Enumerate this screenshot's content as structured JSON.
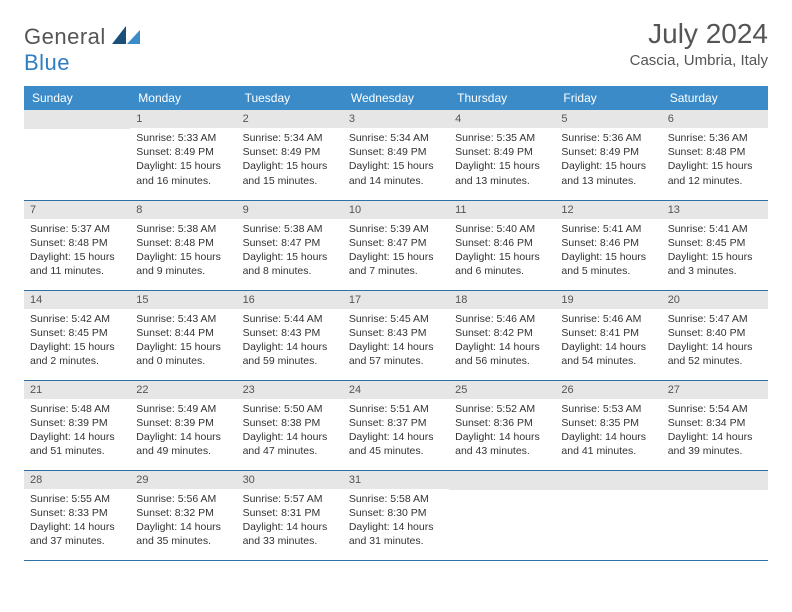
{
  "logo": {
    "general": "General",
    "blue": "Blue",
    "accent_color": "#2f7ec2"
  },
  "title": "July 2024",
  "location": "Cascia, Umbria, Italy",
  "colors": {
    "header_bg": "#3b8bc9",
    "header_text": "#ffffff",
    "day_bar_bg": "#e6e6e6",
    "day_bar_text": "#555555",
    "body_text": "#333333",
    "border": "#2f6fa8",
    "page_bg": "#ffffff",
    "title_text": "#555555"
  },
  "weekdays": [
    "Sunday",
    "Monday",
    "Tuesday",
    "Wednesday",
    "Thursday",
    "Friday",
    "Saturday"
  ],
  "weeks": [
    [
      {
        "blank": true
      },
      {
        "num": "1",
        "sunrise": "Sunrise: 5:33 AM",
        "sunset": "Sunset: 8:49 PM",
        "daylight": "Daylight: 15 hours and 16 minutes."
      },
      {
        "num": "2",
        "sunrise": "Sunrise: 5:34 AM",
        "sunset": "Sunset: 8:49 PM",
        "daylight": "Daylight: 15 hours and 15 minutes."
      },
      {
        "num": "3",
        "sunrise": "Sunrise: 5:34 AM",
        "sunset": "Sunset: 8:49 PM",
        "daylight": "Daylight: 15 hours and 14 minutes."
      },
      {
        "num": "4",
        "sunrise": "Sunrise: 5:35 AM",
        "sunset": "Sunset: 8:49 PM",
        "daylight": "Daylight: 15 hours and 13 minutes."
      },
      {
        "num": "5",
        "sunrise": "Sunrise: 5:36 AM",
        "sunset": "Sunset: 8:49 PM",
        "daylight": "Daylight: 15 hours and 13 minutes."
      },
      {
        "num": "6",
        "sunrise": "Sunrise: 5:36 AM",
        "sunset": "Sunset: 8:48 PM",
        "daylight": "Daylight: 15 hours and 12 minutes."
      }
    ],
    [
      {
        "num": "7",
        "sunrise": "Sunrise: 5:37 AM",
        "sunset": "Sunset: 8:48 PM",
        "daylight": "Daylight: 15 hours and 11 minutes."
      },
      {
        "num": "8",
        "sunrise": "Sunrise: 5:38 AM",
        "sunset": "Sunset: 8:48 PM",
        "daylight": "Daylight: 15 hours and 9 minutes."
      },
      {
        "num": "9",
        "sunrise": "Sunrise: 5:38 AM",
        "sunset": "Sunset: 8:47 PM",
        "daylight": "Daylight: 15 hours and 8 minutes."
      },
      {
        "num": "10",
        "sunrise": "Sunrise: 5:39 AM",
        "sunset": "Sunset: 8:47 PM",
        "daylight": "Daylight: 15 hours and 7 minutes."
      },
      {
        "num": "11",
        "sunrise": "Sunrise: 5:40 AM",
        "sunset": "Sunset: 8:46 PM",
        "daylight": "Daylight: 15 hours and 6 minutes."
      },
      {
        "num": "12",
        "sunrise": "Sunrise: 5:41 AM",
        "sunset": "Sunset: 8:46 PM",
        "daylight": "Daylight: 15 hours and 5 minutes."
      },
      {
        "num": "13",
        "sunrise": "Sunrise: 5:41 AM",
        "sunset": "Sunset: 8:45 PM",
        "daylight": "Daylight: 15 hours and 3 minutes."
      }
    ],
    [
      {
        "num": "14",
        "sunrise": "Sunrise: 5:42 AM",
        "sunset": "Sunset: 8:45 PM",
        "daylight": "Daylight: 15 hours and 2 minutes."
      },
      {
        "num": "15",
        "sunrise": "Sunrise: 5:43 AM",
        "sunset": "Sunset: 8:44 PM",
        "daylight": "Daylight: 15 hours and 0 minutes."
      },
      {
        "num": "16",
        "sunrise": "Sunrise: 5:44 AM",
        "sunset": "Sunset: 8:43 PM",
        "daylight": "Daylight: 14 hours and 59 minutes."
      },
      {
        "num": "17",
        "sunrise": "Sunrise: 5:45 AM",
        "sunset": "Sunset: 8:43 PM",
        "daylight": "Daylight: 14 hours and 57 minutes."
      },
      {
        "num": "18",
        "sunrise": "Sunrise: 5:46 AM",
        "sunset": "Sunset: 8:42 PM",
        "daylight": "Daylight: 14 hours and 56 minutes."
      },
      {
        "num": "19",
        "sunrise": "Sunrise: 5:46 AM",
        "sunset": "Sunset: 8:41 PM",
        "daylight": "Daylight: 14 hours and 54 minutes."
      },
      {
        "num": "20",
        "sunrise": "Sunrise: 5:47 AM",
        "sunset": "Sunset: 8:40 PM",
        "daylight": "Daylight: 14 hours and 52 minutes."
      }
    ],
    [
      {
        "num": "21",
        "sunrise": "Sunrise: 5:48 AM",
        "sunset": "Sunset: 8:39 PM",
        "daylight": "Daylight: 14 hours and 51 minutes."
      },
      {
        "num": "22",
        "sunrise": "Sunrise: 5:49 AM",
        "sunset": "Sunset: 8:39 PM",
        "daylight": "Daylight: 14 hours and 49 minutes."
      },
      {
        "num": "23",
        "sunrise": "Sunrise: 5:50 AM",
        "sunset": "Sunset: 8:38 PM",
        "daylight": "Daylight: 14 hours and 47 minutes."
      },
      {
        "num": "24",
        "sunrise": "Sunrise: 5:51 AM",
        "sunset": "Sunset: 8:37 PM",
        "daylight": "Daylight: 14 hours and 45 minutes."
      },
      {
        "num": "25",
        "sunrise": "Sunrise: 5:52 AM",
        "sunset": "Sunset: 8:36 PM",
        "daylight": "Daylight: 14 hours and 43 minutes."
      },
      {
        "num": "26",
        "sunrise": "Sunrise: 5:53 AM",
        "sunset": "Sunset: 8:35 PM",
        "daylight": "Daylight: 14 hours and 41 minutes."
      },
      {
        "num": "27",
        "sunrise": "Sunrise: 5:54 AM",
        "sunset": "Sunset: 8:34 PM",
        "daylight": "Daylight: 14 hours and 39 minutes."
      }
    ],
    [
      {
        "num": "28",
        "sunrise": "Sunrise: 5:55 AM",
        "sunset": "Sunset: 8:33 PM",
        "daylight": "Daylight: 14 hours and 37 minutes."
      },
      {
        "num": "29",
        "sunrise": "Sunrise: 5:56 AM",
        "sunset": "Sunset: 8:32 PM",
        "daylight": "Daylight: 14 hours and 35 minutes."
      },
      {
        "num": "30",
        "sunrise": "Sunrise: 5:57 AM",
        "sunset": "Sunset: 8:31 PM",
        "daylight": "Daylight: 14 hours and 33 minutes."
      },
      {
        "num": "31",
        "sunrise": "Sunrise: 5:58 AM",
        "sunset": "Sunset: 8:30 PM",
        "daylight": "Daylight: 14 hours and 31 minutes."
      },
      {
        "blank": true
      },
      {
        "blank": true
      },
      {
        "blank": true
      }
    ]
  ]
}
